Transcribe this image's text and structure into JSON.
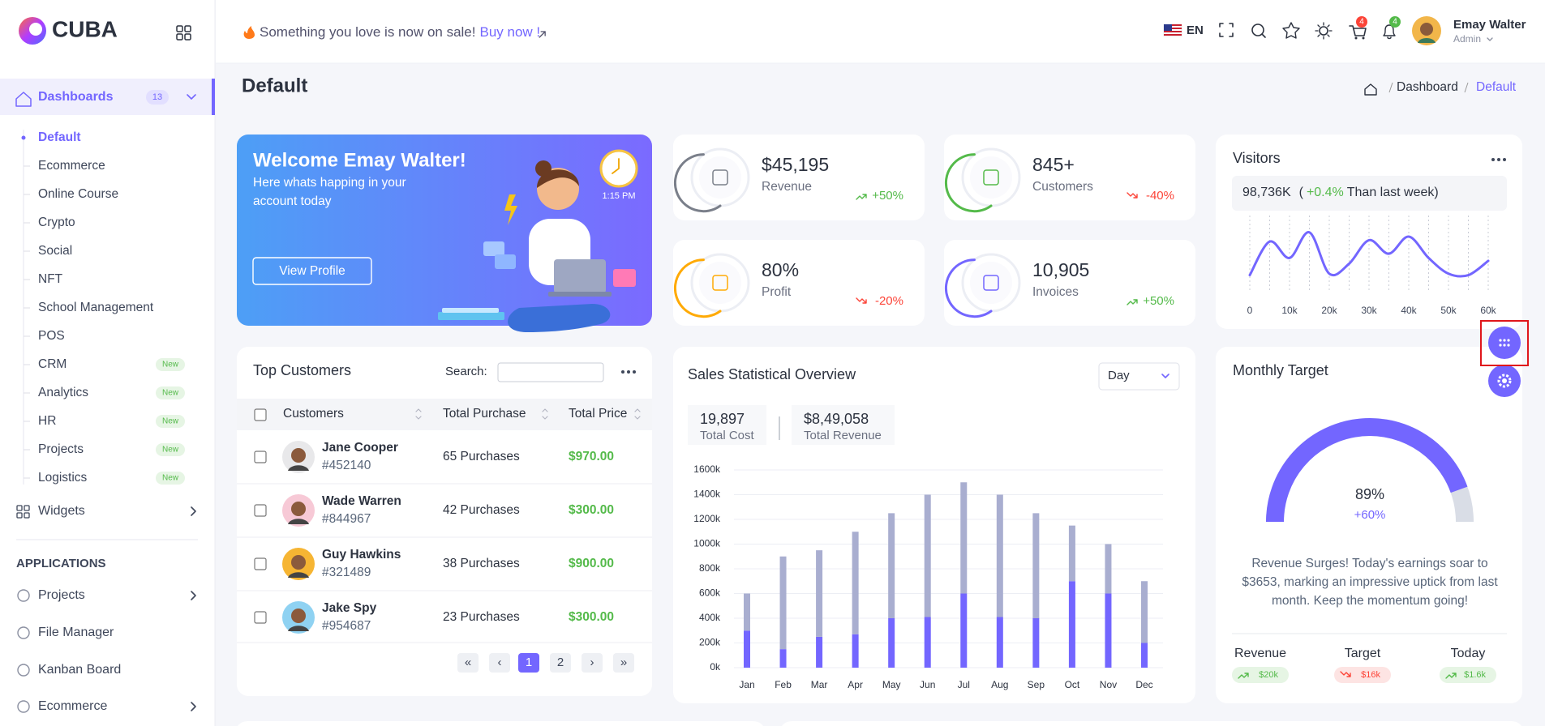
{
  "brand": "CUBA",
  "header": {
    "promo": "Something you love is now on sale!",
    "promo_link": "Buy now !",
    "language": "EN",
    "cart_count": 4,
    "notification_count": 4,
    "user_name": "Emay Walter",
    "user_role": "Admin"
  },
  "sidebar": {
    "menu": {
      "label": "Dashboards",
      "badge": 13
    },
    "submenu": [
      {
        "label": "Default"
      },
      {
        "label": "Ecommerce"
      },
      {
        "label": "Online Course"
      },
      {
        "label": "Crypto"
      },
      {
        "label": "Social"
      },
      {
        "label": "NFT"
      },
      {
        "label": "School Management"
      },
      {
        "label": "POS"
      },
      {
        "label": "CRM",
        "badge": "New"
      },
      {
        "label": "Analytics",
        "badge": "New"
      },
      {
        "label": "HR",
        "badge": "New"
      },
      {
        "label": "Projects",
        "badge": "New"
      },
      {
        "label": "Logistics",
        "badge": "New"
      }
    ],
    "widgets": "Widgets",
    "section_title": "APPLICATIONS",
    "apps": [
      "Projects",
      "File Manager",
      "Kanban Board",
      "Ecommerce"
    ]
  },
  "page": {
    "title": "Default",
    "breadcrumb": [
      "Dashboard",
      "Default"
    ]
  },
  "welcome": {
    "title": "Welcome Emay Walter!",
    "text": [
      "Here whats happing in your",
      "account today"
    ],
    "button": "View Profile",
    "time": "1:15 PM"
  },
  "stats": [
    {
      "value": "$45,195",
      "label": "Revenue",
      "change": "+50%",
      "trend": "up",
      "color": "#7a7f8a"
    },
    {
      "value": "845+",
      "label": "Customers",
      "change": "-40%",
      "trend": "down",
      "color": "#54ba4a"
    },
    {
      "value": "80%",
      "label": "Profit",
      "change": "-20%",
      "trend": "down",
      "color": "#ffaa05"
    },
    {
      "value": "10,905",
      "label": "Invoices",
      "change": "+50%",
      "trend": "up",
      "color": "#7366ff"
    }
  ],
  "visitors_summary": {
    "total": "98,736K",
    "open": "(",
    "change": "+0.4%",
    "note": "Than last week",
    "close": ")"
  },
  "customers_table": {
    "title": "Top Customers",
    "search_label": "Search:",
    "columns": [
      "Customers",
      "Total Purchase",
      "Total Price"
    ],
    "rows": [
      {
        "name": "Jane Cooper",
        "id": "#452140",
        "purchases": "65 Purchases",
        "price": "$970.00"
      },
      {
        "name": "Wade Warren",
        "id": "#844967",
        "purchases": "42 Purchases",
        "price": "$300.00"
      },
      {
        "name": "Guy Hawkins",
        "id": "#321489",
        "purchases": "38 Purchases",
        "price": "$900.00"
      },
      {
        "name": "Jake Spy",
        "id": "#954687",
        "purchases": "23 Purchases",
        "price": "$300.00"
      }
    ],
    "pagination": [
      "«",
      "‹",
      "1",
      "2",
      "›",
      "»"
    ]
  },
  "sales_summary": {
    "period": "Day",
    "items": [
      {
        "value": "19,897",
        "label": "Total Cost"
      },
      {
        "value": "$8,49,058",
        "label": "Total Revenue"
      }
    ]
  },
  "monthly_target_text": [
    "Revenue Surges! Today's earnings soar to",
    "$3653, marking an impressive uptick from last",
    "month. Keep the momentum going!"
  ],
  "monthly_target_stats": [
    {
      "label": "Revenue",
      "value": "$20k",
      "trend": "up"
    },
    {
      "label": "Target",
      "value": "$16k",
      "trend": "down"
    },
    {
      "label": "Today",
      "value": "$1.6k",
      "trend": "up"
    }
  ],
  "chart_data": [
    {
      "type": "line",
      "title": "Visitors",
      "color": "#7366ff",
      "grid": true,
      "x": [
        0,
        5000,
        10000,
        15000,
        20000,
        25000,
        30000,
        35000,
        40000,
        45000,
        50000,
        55000,
        60000
      ],
      "values": [
        21,
        68,
        45,
        81,
        23,
        37,
        70,
        51,
        75,
        45,
        23,
        21,
        41
      ],
      "xlim": [
        0,
        60000
      ],
      "ylim": [
        0,
        100
      ],
      "xticks": [
        0,
        {
          "value": 10000,
          "label": "10k"
        },
        {
          "value": 20000,
          "label": "20k"
        },
        {
          "value": 30000,
          "label": "30k"
        },
        {
          "value": 40000,
          "label": "40k"
        },
        {
          "value": 50000,
          "label": "50k"
        },
        {
          "value": 60000,
          "label": "60k"
        }
      ]
    },
    {
      "type": "bar",
      "title": "Sales Statistical Overview",
      "stacked": true,
      "grid": true,
      "categories": [
        "Jan",
        "Feb",
        "Mar",
        "Apr",
        "May",
        "Jun",
        "Jul",
        "Aug",
        "Sep",
        "Oct",
        "Nov",
        "Dec"
      ],
      "series": [
        {
          "color": "#7366ff",
          "values": [
            300,
            150,
            250,
            270,
            400,
            410,
            600,
            410,
            400,
            700,
            600,
            200
          ]
        },
        {
          "color": "#a9aed0",
          "values": [
            300,
            750,
            700,
            830,
            850,
            990,
            900,
            990,
            850,
            450,
            400,
            500
          ]
        }
      ],
      "ylim": [
        0,
        1600
      ],
      "yticks": [
        {
          "value": 0,
          "label": "0k"
        },
        {
          "value": 200,
          "label": "200k"
        },
        {
          "value": 400,
          "label": "400k"
        },
        {
          "value": 600,
          "label": "600k"
        },
        {
          "value": 800,
          "label": "800k"
        },
        {
          "value": 1000,
          "label": "1000k"
        },
        {
          "value": 1200,
          "label": "1200k"
        },
        {
          "value": 1400,
          "label": "1400k"
        },
        {
          "value": 1600,
          "label": "1600k"
        }
      ]
    },
    {
      "type": "gauge",
      "title": "Monthly Target",
      "color": "#7366ff",
      "values": [
        89
      ],
      "value_labels": [
        "89%"
      ],
      "subtitle": "+60%",
      "ylim": [
        0,
        100
      ]
    }
  ]
}
